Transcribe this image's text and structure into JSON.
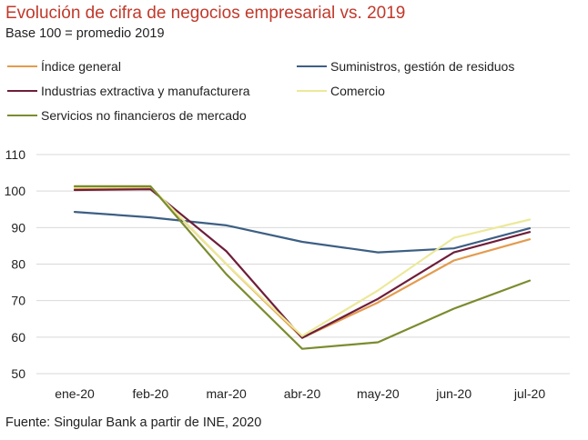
{
  "title": "Evolución de cifra de negocios empresarial vs. 2019",
  "subtitle": "Base 100 = promedio 2019",
  "source": "Fuente: Singular Bank a partir de INE, 2020",
  "colors": {
    "title": "#c0392b",
    "grid": "#d9d9d9"
  },
  "chart_data": {
    "type": "line",
    "categories": [
      "ene-20",
      "feb-20",
      "mar-20",
      "abr-20",
      "may-20",
      "jun-20",
      "jul-20"
    ],
    "ylim": [
      50,
      110
    ],
    "yticks": [
      50,
      60,
      70,
      80,
      90,
      100,
      110
    ],
    "grid": true,
    "legend_position": "top",
    "series": [
      {
        "name": "Índice general",
        "color": "#e39b4f",
        "values": [
          100.8,
          101.0,
          80.0,
          59.8,
          69.5,
          81.0,
          86.8
        ]
      },
      {
        "name": "Suministros, gestión de residuos",
        "color": "#3d5f84",
        "values": [
          94.3,
          92.8,
          90.6,
          86.1,
          83.2,
          84.3,
          89.8
        ]
      },
      {
        "name": "Industrias extractiva y manufacturera",
        "color": "#6e1e3a",
        "values": [
          100.3,
          100.5,
          83.5,
          59.8,
          70.5,
          83.2,
          88.8
        ]
      },
      {
        "name": "Comercio",
        "color": "#ece99a",
        "values": [
          101.0,
          101.2,
          80.0,
          60.3,
          72.8,
          87.2,
          92.2
        ]
      },
      {
        "name": "Servicios no financieros de mercado",
        "color": "#7a8c2e",
        "values": [
          101.3,
          101.3,
          77.2,
          56.8,
          58.6,
          67.8,
          75.5
        ]
      }
    ]
  }
}
